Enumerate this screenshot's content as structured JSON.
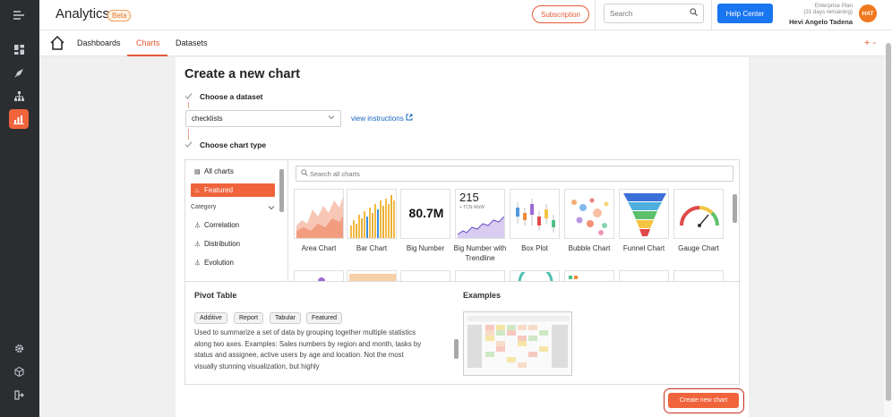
{
  "header": {
    "app_title": "Analytics",
    "beta_badge": "Beta",
    "subscription_label": "Subscription",
    "search_placeholder": "Search",
    "help_label": "Help Center",
    "plan_line1": "Enterprise Plan",
    "plan_line2": "(31 days remaining)",
    "user_name": "Hevi Angelo Tadena",
    "avatar_initials": "HAT"
  },
  "nav": {
    "tabs": [
      {
        "label": "Dashboards"
      },
      {
        "label": "Charts",
        "active": true
      },
      {
        "label": "Datasets"
      }
    ],
    "plus_label": "+ -"
  },
  "main": {
    "title": "Create a new chart",
    "step1_label": "Choose a dataset",
    "dataset_value": "checklists",
    "view_instructions": "view instructions",
    "step2_label": "Choose chart type",
    "chart_search_placeholder": "Search all charts",
    "categories": {
      "all_charts": "All charts",
      "featured": "Featured",
      "category_heading": "Category",
      "items": [
        "Correlation",
        "Distribution",
        "Evolution"
      ]
    },
    "charts": [
      {
        "label": "Area Chart"
      },
      {
        "label": "Bar Chart"
      },
      {
        "label": "Big Number",
        "preview_value": "80.7M"
      },
      {
        "label": "Big Number with Trendline",
        "preview_value": "215",
        "preview_sub": "+ TCN WoW"
      },
      {
        "label": "Box Plot"
      },
      {
        "label": "Bubble Chart"
      },
      {
        "label": "Funnel Chart"
      },
      {
        "label": "Gauge Chart"
      }
    ],
    "detail": {
      "title": "Pivot Table",
      "tags": [
        "Additive",
        "Report",
        "Tabular",
        "Featured"
      ],
      "description": "Used to summarize a set of data by grouping together multiple statistics along two axes. Examples: Sales numbers by region and month, tasks by status and assignee, active users by age and location. Not the most visually stunning visualization, but highly",
      "examples_title": "Examples"
    },
    "create_button_label": "Create new chart"
  },
  "colors": {
    "accent": "#f0643c",
    "primary_blue": "#1976f0",
    "sidebar_bg": "#2b2d31"
  }
}
